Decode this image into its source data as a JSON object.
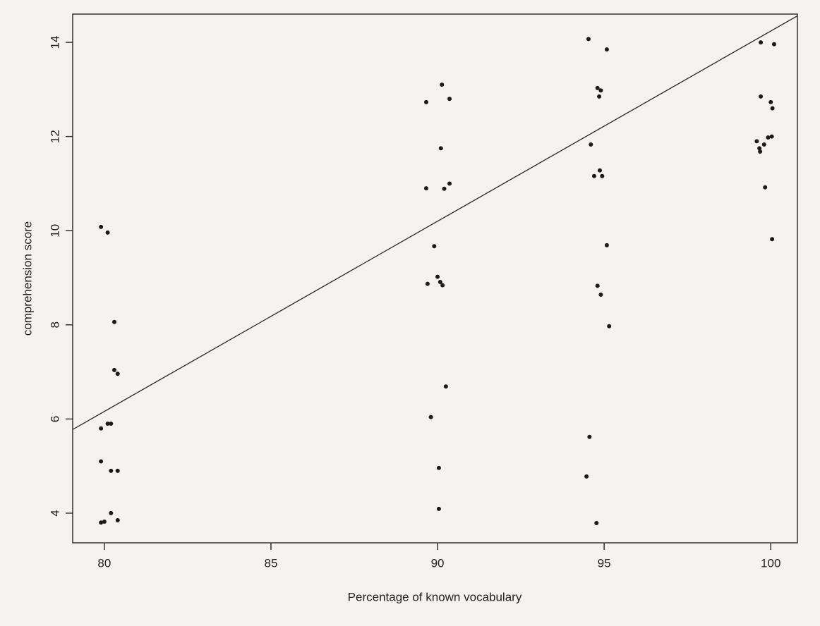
{
  "chart_data": {
    "type": "scatter",
    "x_label": "Percentage of known vocabulary",
    "y_label": "comprehension score",
    "xlim": [
      79.05,
      100.8
    ],
    "ylim": [
      3.37,
      14.6
    ],
    "xticks": [
      80,
      85,
      90,
      95,
      100
    ],
    "yticks": [
      4,
      6,
      8,
      10,
      12,
      14
    ],
    "color": "#1a1a1a",
    "fit": {
      "slope": 0.404,
      "intercept": -26.16
    },
    "x": [
      79.9,
      80.1,
      80.3,
      80.3,
      80.4,
      79.9,
      80.1,
      80.2,
      79.9,
      80.2,
      80.4,
      80.2,
      79.9,
      80.0,
      80.4,
      89.66,
      90.13,
      90.36,
      90.1,
      89.66,
      90.2,
      90.36,
      89.9,
      89.7,
      90.0,
      90.08,
      90.15,
      90.25,
      89.8,
      90.04,
      90.04,
      94.53,
      95.08,
      94.8,
      94.9,
      94.85,
      94.6,
      94.7,
      94.87,
      94.94,
      95.08,
      94.8,
      94.9,
      95.15,
      94.56,
      94.47,
      94.77,
      99.7,
      100.1,
      99.7,
      100.0,
      100.05,
      99.58,
      99.66,
      99.68,
      99.8,
      99.92,
      100.03,
      99.83,
      100.04
    ],
    "values": [
      10.08,
      9.96,
      8.06,
      7.04,
      6.96,
      5.8,
      5.9,
      5.9,
      5.1,
      4.9,
      4.9,
      4.0,
      3.8,
      3.82,
      3.85,
      12.73,
      13.1,
      12.8,
      11.75,
      10.9,
      10.89,
      11.0,
      9.67,
      8.87,
      9.02,
      8.91,
      8.84,
      6.69,
      6.04,
      4.96,
      4.09,
      14.07,
      13.85,
      13.03,
      12.98,
      12.85,
      11.83,
      11.16,
      11.28,
      11.16,
      9.69,
      8.83,
      8.64,
      7.97,
      5.62,
      4.78,
      3.79,
      14.0,
      13.96,
      12.85,
      12.73,
      12.6,
      11.9,
      11.75,
      11.68,
      11.83,
      11.98,
      12.0,
      10.92,
      9.82
    ]
  }
}
